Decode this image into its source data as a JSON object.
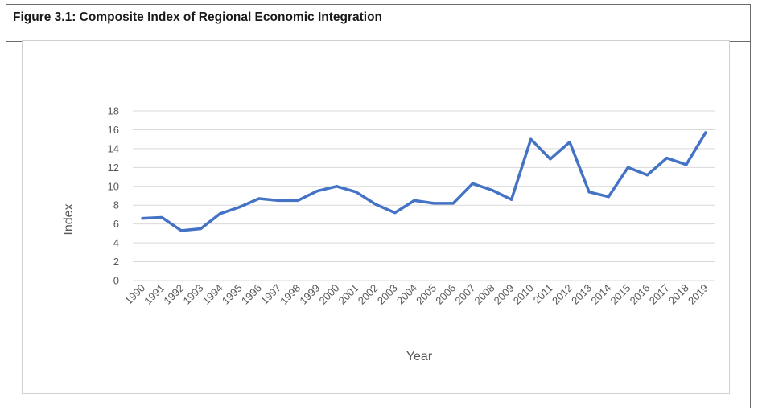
{
  "figure": {
    "title": "Figure 3.1: Composite Index of Regional Economic Integration"
  },
  "chart_data": {
    "type": "line",
    "title": "",
    "xlabel": "Year",
    "ylabel": "Index",
    "ylim": [
      0,
      18
    ],
    "yticks": [
      0,
      2,
      4,
      6,
      8,
      10,
      12,
      14,
      16,
      18
    ],
    "grid": true,
    "legend": "none",
    "categories": [
      "1990",
      "1991",
      "1992",
      "1993",
      "1994",
      "1995",
      "1996",
      "1997",
      "1998",
      "1999",
      "2000",
      "2001",
      "2002",
      "2003",
      "2004",
      "2005",
      "2006",
      "2007",
      "2008",
      "2009",
      "2010",
      "2011",
      "2012",
      "2013",
      "2014",
      "2015",
      "2016",
      "2017",
      "2018",
      "2019"
    ],
    "series": [
      {
        "color": "#4472c4",
        "values": [
          6.6,
          6.7,
          5.3,
          5.5,
          7.1,
          7.8,
          8.7,
          8.5,
          8.5,
          9.5,
          10.0,
          9.4,
          8.1,
          7.2,
          8.5,
          8.2,
          8.2,
          10.3,
          9.6,
          8.6,
          15.0,
          12.9,
          14.7,
          9.4,
          8.9,
          12.0,
          11.2,
          13.0,
          12.3,
          15.7
        ]
      }
    ]
  }
}
